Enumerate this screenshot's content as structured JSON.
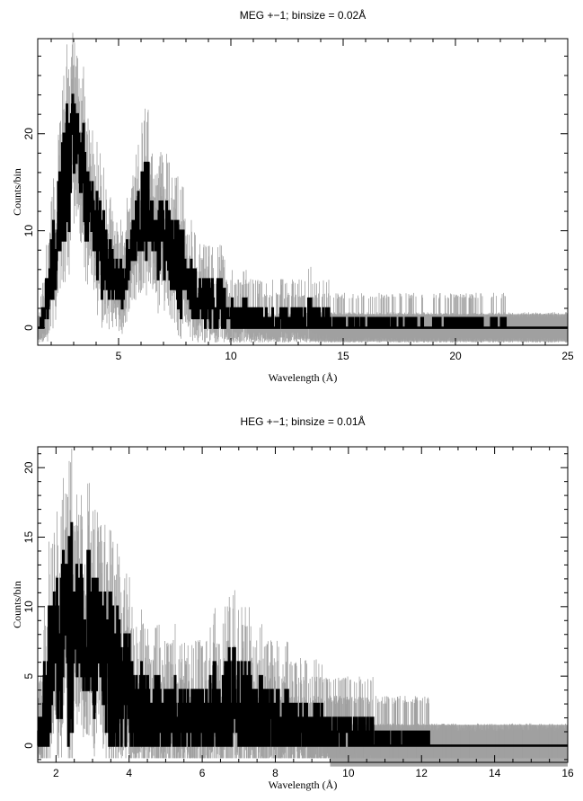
{
  "chart_data": [
    {
      "type": "line",
      "title": "MEG +−1; binsize = 0.02Å",
      "xlabel": "Wavelength (Å)",
      "ylabel": "Counts/bin",
      "xlim": [
        1.4,
        25
      ],
      "ylim": [
        -1.8,
        29.8
      ],
      "xticks": [
        5,
        10,
        15,
        20,
        25
      ],
      "xtick_labels": [
        "5",
        "10",
        "15",
        "20",
        "25"
      ],
      "yticks": [
        0,
        10,
        20
      ],
      "ytick_labels": [
        "0",
        "10",
        "20"
      ],
      "grid": false,
      "legend": "none",
      "series": [
        {
          "role": "counts",
          "color": "#000000",
          "x": [
            1.5,
            1.8,
            2.0,
            2.2,
            2.4,
            2.6,
            2.8,
            3.0,
            3.2,
            3.4,
            3.6,
            3.8,
            4.0,
            4.2,
            4.4,
            4.6,
            4.8,
            5.0,
            5.2,
            5.4,
            5.6,
            5.8,
            6.0,
            6.2,
            6.4,
            6.6,
            6.8,
            7.0,
            7.2,
            7.4,
            7.6,
            7.8,
            8.0,
            8.3,
            8.6,
            9.0,
            9.4,
            9.8,
            10.2,
            10.6,
            11.0,
            11.5,
            12.0,
            12.5,
            13.0,
            13.5,
            15.0,
            15.3,
            17.7,
            22.2
          ],
          "y": [
            0.5,
            2.5,
            5.5,
            8.5,
            13.5,
            15.0,
            17.0,
            20.0,
            19.0,
            16.5,
            14.0,
            12.0,
            10.5,
            8.0,
            7.0,
            6.0,
            5.0,
            4.5,
            5.0,
            6.0,
            8.0,
            10.5,
            12.0,
            12.5,
            12.0,
            10.5,
            10.0,
            9.0,
            8.0,
            7.0,
            6.5,
            5.5,
            5.0,
            4.0,
            3.0,
            2.5,
            2.0,
            1.5,
            1.0,
            1.0,
            0.5,
            0.5,
            0.5,
            0.5,
            0.3,
            0.3,
            0.2,
            0.1,
            0.1,
            0.1
          ],
          "ymax": [
            2.0,
            5.0,
            9.0,
            14.0,
            20.0,
            22.0,
            24.0,
            24.0,
            23.0,
            22.0,
            20.0,
            16.0,
            15.0,
            14.0,
            11.0,
            10.0,
            7.0,
            7.0,
            8.0,
            9.0,
            12.0,
            15.0,
            16.0,
            20.0,
            17.0,
            15.0,
            15.0,
            13.0,
            13.0,
            12.0,
            11.0,
            11.0,
            8.0,
            7.0,
            6.0,
            5.0,
            5.0,
            4.0,
            3.0,
            3.0,
            2.0,
            2.0,
            2.0,
            2.0,
            2.0,
            3.0,
            1.0,
            1.0,
            1.0,
            1.0
          ]
        },
        {
          "role": "background",
          "color": "#aaaaaa",
          "x": [
            13.5,
            25
          ],
          "y": [
            1.4,
            1.4
          ]
        }
      ]
    },
    {
      "type": "line",
      "title": "HEG +−1; binsize = 0.01Å",
      "xlabel": "Wavelength (Å)",
      "ylabel": "Counts/bin",
      "xlim": [
        1.5,
        16
      ],
      "ylim": [
        -1.2,
        21.5
      ],
      "xticks": [
        2,
        4,
        6,
        8,
        10,
        12,
        14,
        16
      ],
      "xtick_labels": [
        "2",
        "4",
        "6",
        "8",
        "10",
        "12",
        "14",
        "16"
      ],
      "yticks": [
        0,
        5,
        10,
        15,
        20
      ],
      "ytick_labels": [
        "0",
        "5",
        "10",
        "15",
        "20"
      ],
      "grid": false,
      "legend": "none",
      "series": [
        {
          "role": "counts",
          "color": "#000000",
          "x": [
            1.6,
            1.8,
            2.0,
            2.2,
            2.4,
            2.6,
            2.8,
            3.0,
            3.2,
            3.4,
            3.6,
            3.8,
            4.0,
            4.2,
            4.4,
            4.6,
            4.8,
            5.0,
            5.3,
            5.6,
            6.0,
            6.4,
            6.8,
            7.2,
            7.6,
            8.0,
            8.4,
            8.8,
            9.2,
            9.6,
            10.0,
            10.5,
            11.0,
            11.5,
            12.1
          ],
          "y": [
            1.0,
            4.0,
            6.5,
            8.0,
            8.0,
            8.5,
            8.5,
            8.0,
            7.0,
            6.0,
            5.0,
            4.0,
            3.0,
            2.5,
            2.3,
            2.0,
            2.0,
            2.0,
            1.8,
            1.8,
            2.0,
            2.0,
            2.0,
            2.0,
            1.8,
            1.6,
            1.3,
            1.0,
            1.0,
            0.8,
            0.6,
            0.5,
            0.4,
            0.4,
            0.4
          ],
          "ymax": [
            3.0,
            10.0,
            12.0,
            14.0,
            17.0,
            13.0,
            15.0,
            14.0,
            12.0,
            11.0,
            12.0,
            9.0,
            8.0,
            6.0,
            6.0,
            5.0,
            6.0,
            5.0,
            5.0,
            4.0,
            5.0,
            6.0,
            7.0,
            6.0,
            5.0,
            4.0,
            4.0,
            3.0,
            3.0,
            2.0,
            2.0,
            2.0,
            1.0,
            1.0,
            1.0
          ]
        },
        {
          "role": "background",
          "color": "#aaaaaa",
          "x": [
            9.5,
            16
          ],
          "y": [
            1.5,
            1.5
          ]
        }
      ]
    }
  ]
}
